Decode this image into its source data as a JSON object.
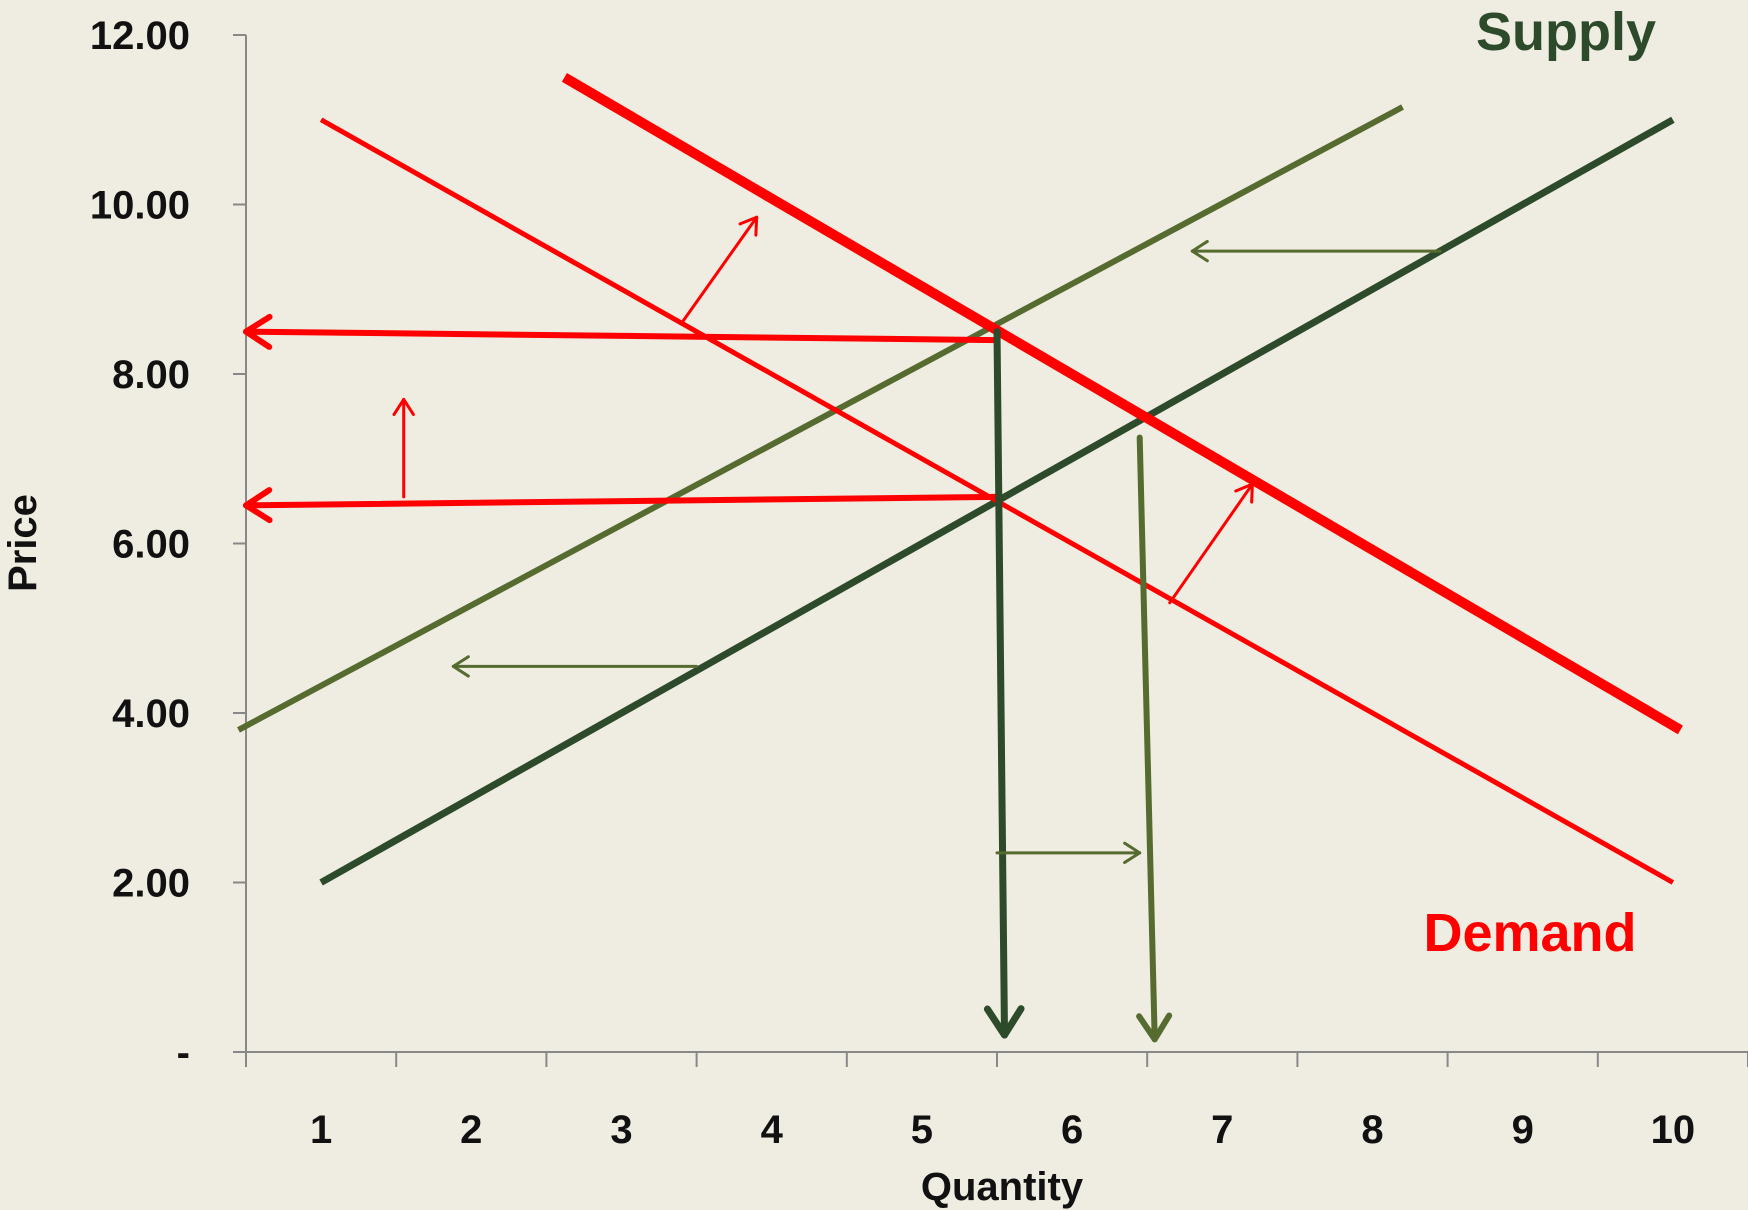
{
  "chart_data": {
    "type": "line",
    "xlabel": "Quantity",
    "ylabel": "Price",
    "categories": [
      "1",
      "2",
      "3",
      "4",
      "5",
      "6",
      "7",
      "8",
      "9",
      "10"
    ],
    "y_ticks": [
      "-",
      "2.00",
      "4.00",
      "6.00",
      "8.00",
      "10.00",
      "12.00"
    ],
    "xlim": [
      0.5,
      10.5
    ],
    "ylim": [
      0,
      12
    ],
    "grid": false,
    "labels": [
      {
        "text": "Supply",
        "color": "#2d4a2b"
      },
      {
        "text": "Demand",
        "color": "#ff0000"
      }
    ],
    "series": [
      {
        "kind": "supply",
        "color": "#2d4a2b",
        "width": 7,
        "points": [
          [
            1,
            2
          ],
          [
            10,
            11
          ]
        ]
      },
      {
        "kind": "supply-shifted",
        "color": "#556b2f",
        "width": 6,
        "points": [
          [
            0.45,
            3.8
          ],
          [
            8.2,
            11.15
          ]
        ]
      },
      {
        "kind": "demand",
        "color": "#ff0000",
        "width": 5,
        "points": [
          [
            1,
            11
          ],
          [
            10,
            2
          ]
        ]
      },
      {
        "kind": "demand-shifted",
        "color": "#ff0000",
        "width": 10,
        "points": [
          [
            2.62,
            11.5
          ],
          [
            10.05,
            3.8
          ]
        ]
      }
    ],
    "annotations": [
      {
        "kind": "price-arrow",
        "color": "#ff0000",
        "width": 6,
        "from": [
          5.5,
          8.4
        ],
        "to": [
          0.5,
          8.5
        ]
      },
      {
        "kind": "price-arrow",
        "color": "#ff0000",
        "width": 6,
        "from": [
          5.5,
          6.55
        ],
        "to": [
          0.5,
          6.45
        ]
      },
      {
        "kind": "quantity-arrow",
        "color": "#2d4a2b",
        "width": 7,
        "from": [
          5.5,
          8.5
        ],
        "to": [
          5.55,
          0.2
        ]
      },
      {
        "kind": "quantity-arrow",
        "color": "#556b2f",
        "width": 6,
        "from": [
          6.45,
          7.25
        ],
        "to": [
          6.55,
          0.15
        ]
      },
      {
        "kind": "shift-arrow",
        "color": "#ff0000",
        "width": 3,
        "from": [
          3.4,
          8.6
        ],
        "to": [
          3.9,
          9.85
        ]
      },
      {
        "kind": "shift-arrow",
        "color": "#ff0000",
        "width": 3,
        "from": [
          1.55,
          6.55
        ],
        "to": [
          1.55,
          7.7
        ]
      },
      {
        "kind": "shift-arrow",
        "color": "#ff0000",
        "width": 3,
        "from": [
          6.65,
          5.3
        ],
        "to": [
          7.2,
          6.7
        ]
      },
      {
        "kind": "shift-arrow",
        "color": "#556b2f",
        "width": 3,
        "from": [
          8.45,
          9.45
        ],
        "to": [
          6.8,
          9.45
        ]
      },
      {
        "kind": "shift-arrow",
        "color": "#556b2f",
        "width": 3,
        "from": [
          3.5,
          4.55
        ],
        "to": [
          1.88,
          4.55
        ]
      },
      {
        "kind": "shift-arrow",
        "color": "#556b2f",
        "width": 3,
        "from": [
          5.5,
          2.35
        ],
        "to": [
          6.45,
          2.35
        ]
      }
    ]
  }
}
